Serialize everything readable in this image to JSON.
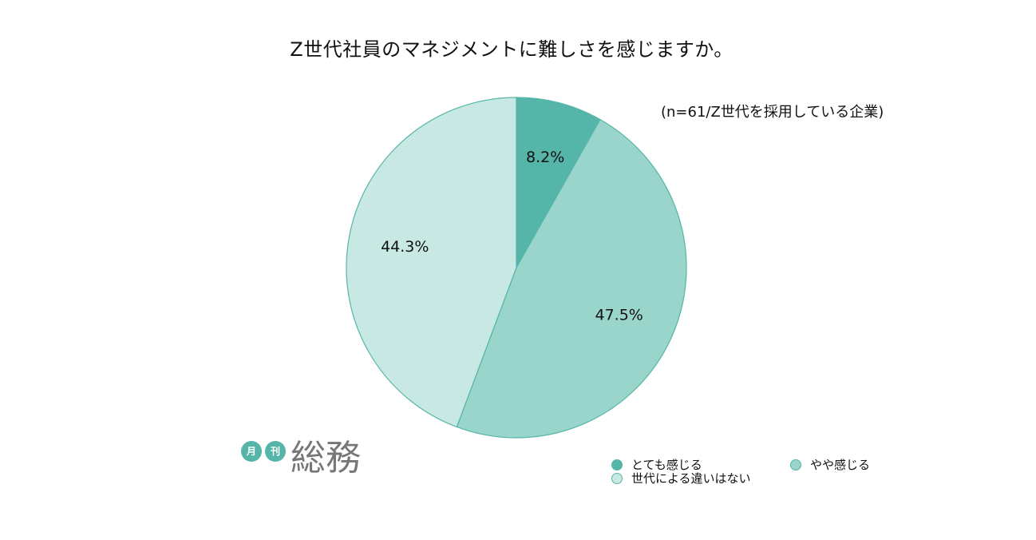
{
  "chart_data": {
    "type": "pie",
    "title": "Z世代社員のマネジメントに難しさを感じますか。",
    "subtitle": "(n=61/Z世代を採用している企業)",
    "series": [
      {
        "name": "とても感じる",
        "value": 8.2,
        "label": "8.2%",
        "color": "#55b5a8"
      },
      {
        "name": "やや感じる",
        "value": 47.5,
        "label": "47.5%",
        "color": "#99d5cb"
      },
      {
        "name": "世代による違いはない",
        "value": 44.3,
        "label": "44.3%",
        "color": "#c8e8e3"
      }
    ],
    "start_angle_deg": 0,
    "direction": "clockwise",
    "legend_position": "bottom-right"
  },
  "logo": {
    "badge_1": "月",
    "badge_2": "刊",
    "wordmark": "総務"
  }
}
